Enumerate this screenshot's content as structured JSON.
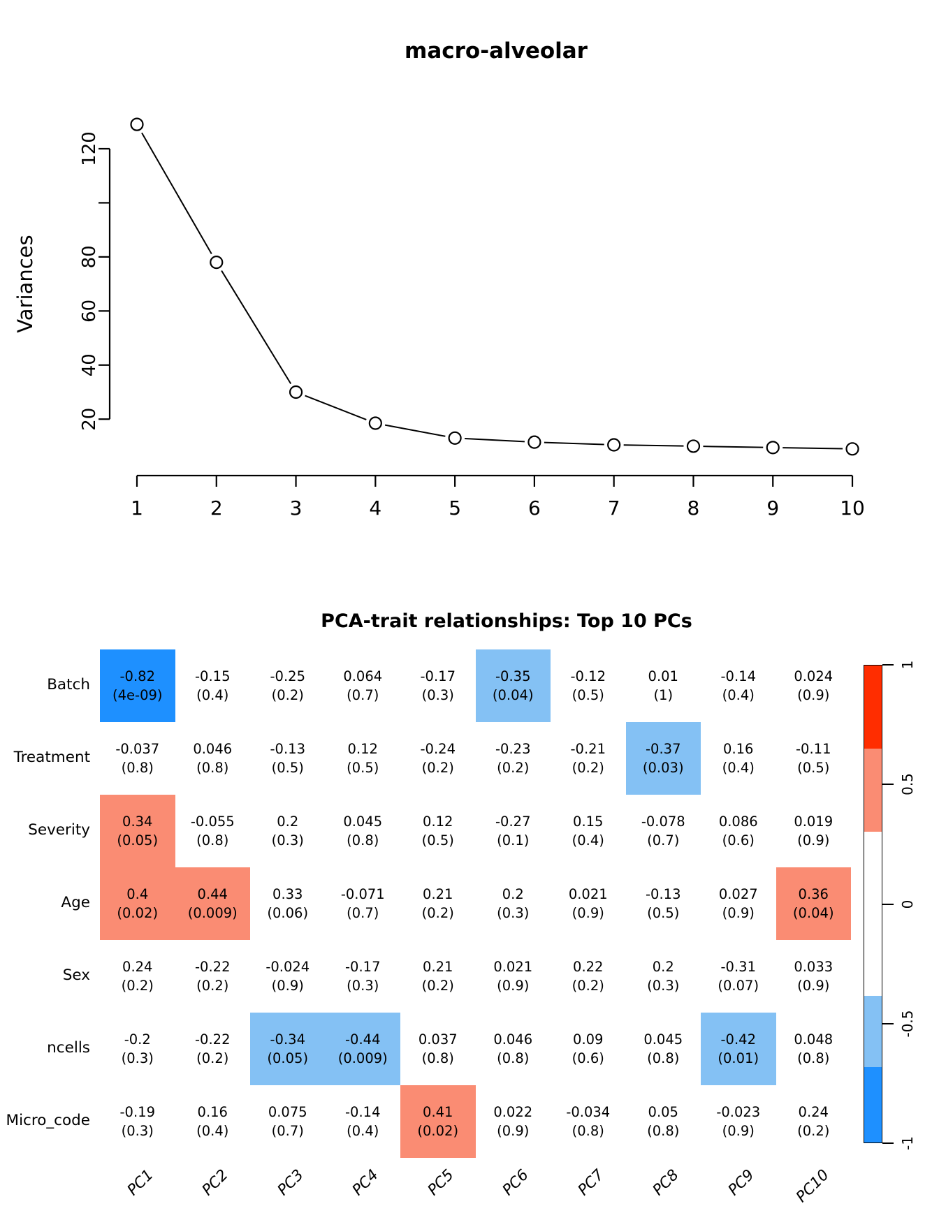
{
  "figure": {
    "scree_title": "macro-alveolar",
    "heatmap_title": "PCA-trait relationships: Top 10 PCs"
  },
  "colors": {
    "strong_blue": "#1E90FF",
    "light_blue": "#84C1F4",
    "salmon": "#FA8C73",
    "red": "#FF2D00",
    "white": "#FFFFFF",
    "axis_black": "#000000"
  },
  "chart_data": [
    {
      "type": "line",
      "title": "macro-alveolar",
      "xlabel": "",
      "ylabel": "Variances",
      "x": [
        1,
        2,
        3,
        4,
        5,
        6,
        7,
        8,
        9,
        10
      ],
      "values": [
        129,
        78,
        30,
        18.5,
        13,
        11.5,
        10.5,
        10,
        9.5,
        9
      ],
      "x_tick_labels": [
        "1",
        "2",
        "3",
        "4",
        "5",
        "6",
        "7",
        "8",
        "9",
        "10"
      ],
      "y_ticks": [
        {
          "value": 120,
          "label": "120"
        },
        {
          "value": 100,
          "label": ""
        },
        {
          "value": 80,
          "label": "80"
        },
        {
          "value": 60,
          "label": "60"
        },
        {
          "value": 40,
          "label": "40"
        },
        {
          "value": 20,
          "label": "20"
        }
      ],
      "ylim": [
        5,
        134
      ],
      "marker": "open-circle",
      "grid": false
    },
    {
      "type": "heatmap",
      "title": "PCA-trait relationships: Top 10 PCs",
      "columns": [
        "PC1",
        "PC2",
        "PC3",
        "PC4",
        "PC5",
        "PC6",
        "PC7",
        "PC8",
        "PC9",
        "PC10"
      ],
      "rows": [
        {
          "label": "Batch",
          "cells": [
            {
              "r": "-0.82",
              "p": "(4e-09)",
              "c": "strong_blue"
            },
            {
              "r": "-0.15",
              "p": "(0.4)",
              "c": "white"
            },
            {
              "r": "-0.25",
              "p": "(0.2)",
              "c": "white"
            },
            {
              "r": "0.064",
              "p": "(0.7)",
              "c": "white"
            },
            {
              "r": "-0.17",
              "p": "(0.3)",
              "c": "white"
            },
            {
              "r": "-0.35",
              "p": "(0.04)",
              "c": "light_blue"
            },
            {
              "r": "-0.12",
              "p": "(0.5)",
              "c": "white"
            },
            {
              "r": "0.01",
              "p": "(1)",
              "c": "white"
            },
            {
              "r": "-0.14",
              "p": "(0.4)",
              "c": "white"
            },
            {
              "r": "0.024",
              "p": "(0.9)",
              "c": "white"
            }
          ]
        },
        {
          "label": "Treatment",
          "cells": [
            {
              "r": "-0.037",
              "p": "(0.8)",
              "c": "white"
            },
            {
              "r": "0.046",
              "p": "(0.8)",
              "c": "white"
            },
            {
              "r": "-0.13",
              "p": "(0.5)",
              "c": "white"
            },
            {
              "r": "0.12",
              "p": "(0.5)",
              "c": "white"
            },
            {
              "r": "-0.24",
              "p": "(0.2)",
              "c": "white"
            },
            {
              "r": "-0.23",
              "p": "(0.2)",
              "c": "white"
            },
            {
              "r": "-0.21",
              "p": "(0.2)",
              "c": "white"
            },
            {
              "r": "-0.37",
              "p": "(0.03)",
              "c": "light_blue"
            },
            {
              "r": "0.16",
              "p": "(0.4)",
              "c": "white"
            },
            {
              "r": "-0.11",
              "p": "(0.5)",
              "c": "white"
            }
          ]
        },
        {
          "label": "Severity",
          "cells": [
            {
              "r": "0.34",
              "p": "(0.05)",
              "c": "salmon"
            },
            {
              "r": "-0.055",
              "p": "(0.8)",
              "c": "white"
            },
            {
              "r": "0.2",
              "p": "(0.3)",
              "c": "white"
            },
            {
              "r": "0.045",
              "p": "(0.8)",
              "c": "white"
            },
            {
              "r": "0.12",
              "p": "(0.5)",
              "c": "white"
            },
            {
              "r": "-0.27",
              "p": "(0.1)",
              "c": "white"
            },
            {
              "r": "0.15",
              "p": "(0.4)",
              "c": "white"
            },
            {
              "r": "-0.078",
              "p": "(0.7)",
              "c": "white"
            },
            {
              "r": "0.086",
              "p": "(0.6)",
              "c": "white"
            },
            {
              "r": "0.019",
              "p": "(0.9)",
              "c": "white"
            }
          ]
        },
        {
          "label": "Age",
          "cells": [
            {
              "r": "0.4",
              "p": "(0.02)",
              "c": "salmon"
            },
            {
              "r": "0.44",
              "p": "(0.009)",
              "c": "salmon"
            },
            {
              "r": "0.33",
              "p": "(0.06)",
              "c": "white"
            },
            {
              "r": "-0.071",
              "p": "(0.7)",
              "c": "white"
            },
            {
              "r": "0.21",
              "p": "(0.2)",
              "c": "white"
            },
            {
              "r": "0.2",
              "p": "(0.3)",
              "c": "white"
            },
            {
              "r": "0.021",
              "p": "(0.9)",
              "c": "white"
            },
            {
              "r": "-0.13",
              "p": "(0.5)",
              "c": "white"
            },
            {
              "r": "0.027",
              "p": "(0.9)",
              "c": "white"
            },
            {
              "r": "0.36",
              "p": "(0.04)",
              "c": "salmon"
            }
          ]
        },
        {
          "label": "Sex",
          "cells": [
            {
              "r": "0.24",
              "p": "(0.2)",
              "c": "white"
            },
            {
              "r": "-0.22",
              "p": "(0.2)",
              "c": "white"
            },
            {
              "r": "-0.024",
              "p": "(0.9)",
              "c": "white"
            },
            {
              "r": "-0.17",
              "p": "(0.3)",
              "c": "white"
            },
            {
              "r": "0.21",
              "p": "(0.2)",
              "c": "white"
            },
            {
              "r": "0.021",
              "p": "(0.9)",
              "c": "white"
            },
            {
              "r": "0.22",
              "p": "(0.2)",
              "c": "white"
            },
            {
              "r": "0.2",
              "p": "(0.3)",
              "c": "white"
            },
            {
              "r": "-0.31",
              "p": "(0.07)",
              "c": "white"
            },
            {
              "r": "0.033",
              "p": "(0.9)",
              "c": "white"
            }
          ]
        },
        {
          "label": "ncells",
          "cells": [
            {
              "r": "-0.2",
              "p": "(0.3)",
              "c": "white"
            },
            {
              "r": "-0.22",
              "p": "(0.2)",
              "c": "white"
            },
            {
              "r": "-0.34",
              "p": "(0.05)",
              "c": "light_blue"
            },
            {
              "r": "-0.44",
              "p": "(0.009)",
              "c": "light_blue"
            },
            {
              "r": "0.037",
              "p": "(0.8)",
              "c": "white"
            },
            {
              "r": "0.046",
              "p": "(0.8)",
              "c": "white"
            },
            {
              "r": "0.09",
              "p": "(0.6)",
              "c": "white"
            },
            {
              "r": "0.045",
              "p": "(0.8)",
              "c": "white"
            },
            {
              "r": "-0.42",
              "p": "(0.01)",
              "c": "light_blue"
            },
            {
              "r": "0.048",
              "p": "(0.8)",
              "c": "white"
            }
          ]
        },
        {
          "label": "Micro_code",
          "cells": [
            {
              "r": "-0.19",
              "p": "(0.3)",
              "c": "white"
            },
            {
              "r": "0.16",
              "p": "(0.4)",
              "c": "white"
            },
            {
              "r": "0.075",
              "p": "(0.7)",
              "c": "white"
            },
            {
              "r": "-0.14",
              "p": "(0.4)",
              "c": "white"
            },
            {
              "r": "0.41",
              "p": "(0.02)",
              "c": "salmon"
            },
            {
              "r": "0.022",
              "p": "(0.9)",
              "c": "white"
            },
            {
              "r": "-0.034",
              "p": "(0.8)",
              "c": "white"
            },
            {
              "r": "0.05",
              "p": "(0.8)",
              "c": "white"
            },
            {
              "r": "-0.023",
              "p": "(0.9)",
              "c": "white"
            },
            {
              "r": "0.24",
              "p": "(0.2)",
              "c": "white"
            }
          ]
        }
      ],
      "colorbar": {
        "ticks": [
          {
            "value": 1,
            "label": "1"
          },
          {
            "value": 0.5,
            "label": "0.5"
          },
          {
            "value": 0,
            "label": "0"
          },
          {
            "value": -0.5,
            "label": "-0.5"
          },
          {
            "value": -1,
            "label": "-1"
          }
        ],
        "segments": [
          {
            "color_key": "red",
            "frac": 0.174
          },
          {
            "color_key": "salmon",
            "frac": 0.175
          },
          {
            "color_key": "white",
            "frac": 0.343
          },
          {
            "color_key": "light_blue",
            "frac": 0.15
          },
          {
            "color_key": "strong_blue",
            "frac": 0.158
          }
        ],
        "range": [
          -1,
          1
        ],
        "legend_position": "right"
      }
    }
  ]
}
